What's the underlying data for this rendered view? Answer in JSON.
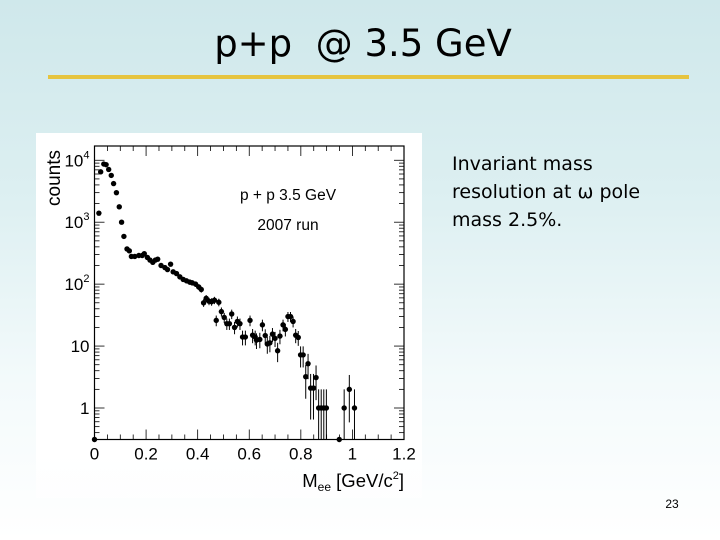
{
  "slide": {
    "title": "p+p  @ 3.5 GeV",
    "page_number": "23",
    "body_text_lines": [
      "Invariant mass",
      "resolution at ω pole",
      "mass 2.5%."
    ],
    "colors": {
      "title_rule": "#e6c43f",
      "background_top": "#cfe8eb",
      "background_bottom": "#ffffff",
      "marker": "#000000"
    }
  },
  "chart_data": {
    "type": "scatter",
    "title": "",
    "annotations": [
      "p + p 3.5 GeV",
      "2007 run"
    ],
    "xlabel": "Mee [GeV/c2]",
    "xlabel_parts": {
      "main": "M",
      "sub": "ee",
      "rest": " [GeV/c",
      "sup": "2",
      "end": "]"
    },
    "ylabel": "counts",
    "yscale": "log",
    "xlim": [
      0,
      1.2
    ],
    "ylim": [
      0.31,
      17000
    ],
    "x_ticks": [
      0,
      0.2,
      0.4,
      0.6,
      0.8,
      1,
      1.2
    ],
    "x_tick_labels": [
      "0",
      "0.2",
      "0.4",
      "0.6",
      "0.8",
      "1",
      "1.2"
    ],
    "y_ticks": [
      1,
      10,
      100,
      1000,
      10000
    ],
    "y_tick_labels": [
      "1",
      "10",
      "10^2",
      "10^3",
      "10^4"
    ],
    "grid": false,
    "legend": "none",
    "error_bars": "sqrt(N)",
    "series": [
      {
        "name": "p + p 3.5 GeV, 2007 run",
        "x": [
          0.0,
          0.017,
          0.024,
          0.036,
          0.045,
          0.055,
          0.065,
          0.074,
          0.085,
          0.096,
          0.105,
          0.114,
          0.126,
          0.135,
          0.143,
          0.156,
          0.172,
          0.185,
          0.193,
          0.205,
          0.215,
          0.226,
          0.236,
          0.245,
          0.258,
          0.273,
          0.283,
          0.295,
          0.305,
          0.318,
          0.331,
          0.344,
          0.357,
          0.369,
          0.379,
          0.392,
          0.404,
          0.414,
          0.423,
          0.433,
          0.444,
          0.454,
          0.465,
          0.472,
          0.482,
          0.492,
          0.503,
          0.513,
          0.523,
          0.532,
          0.543,
          0.554,
          0.564,
          0.574,
          0.585,
          0.603,
          0.613,
          0.623,
          0.628,
          0.641,
          0.651,
          0.662,
          0.67,
          0.68,
          0.69,
          0.7,
          0.71,
          0.719,
          0.731,
          0.74,
          0.75,
          0.76,
          0.77,
          0.78,
          0.79,
          0.799,
          0.809,
          0.819,
          0.828,
          0.838,
          0.849,
          0.859,
          0.869,
          0.879,
          0.889,
          0.899,
          0.949,
          0.968,
          0.988,
          1.008
        ],
        "values": [
          0,
          1400,
          6500,
          8700,
          8500,
          7100,
          5700,
          4200,
          3000,
          1770,
          1000,
          590,
          370,
          345,
          280,
          280,
          290,
          290,
          310,
          270,
          245,
          225,
          245,
          253,
          200,
          185,
          172,
          210,
          158,
          148,
          131,
          119,
          113,
          108,
          105,
          100,
          90,
          82,
          50,
          59,
          53,
          52,
          55,
          26,
          51,
          36,
          29,
          23,
          23,
          33,
          20,
          25,
          23,
          14,
          14,
          26,
          15,
          14,
          12.5,
          12.8,
          22,
          14.8,
          10.8,
          11.3,
          15.6,
          13.3,
          8.4,
          14.5,
          22,
          18.6,
          30,
          30,
          25,
          15,
          13.8,
          7.2,
          7.2,
          3.2,
          5.2,
          2.1,
          2.1,
          3.1,
          1,
          1,
          1,
          1,
          0,
          1,
          2,
          1
        ]
      }
    ]
  }
}
